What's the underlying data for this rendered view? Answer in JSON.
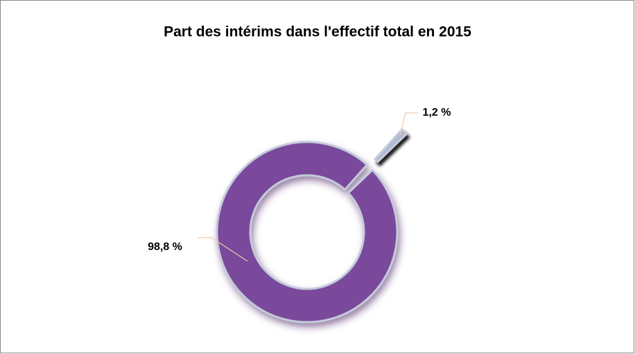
{
  "chart_data": {
    "type": "donut",
    "title": "Part des intérims dans l'effectif total en 2015",
    "values": [
      98.8,
      1.2
    ],
    "value_labels": [
      "98,8 %",
      "1,2 %"
    ],
    "colors": [
      "#7a4a9b",
      "#aebccf"
    ]
  }
}
